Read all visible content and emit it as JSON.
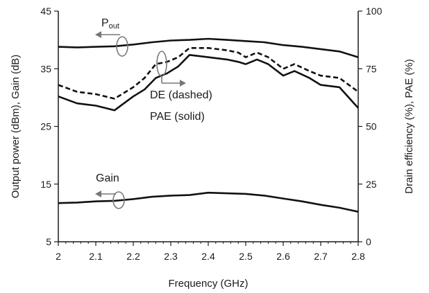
{
  "chart_data": {
    "type": "line",
    "title": "",
    "xlabel": "Frequency (GHz)",
    "ylabel_left": "Output power (dBm), Gain (dB)",
    "ylabel_right": "Drain efficiency (%), PAE (%)",
    "xlim": [
      2,
      2.8
    ],
    "ylim_left": [
      5,
      45
    ],
    "ylim_right": [
      0,
      100
    ],
    "x_ticks": [
      "2",
      "2.1",
      "2.2",
      "2.3",
      "2.4",
      "2.5",
      "2.6",
      "2.7",
      "2.8"
    ],
    "y_left_ticks": [
      "5",
      "15",
      "25",
      "35",
      "45"
    ],
    "y_right_ticks": [
      "0",
      "25",
      "50",
      "75",
      "100"
    ],
    "grid": false,
    "annotations": {
      "pout_main": "P",
      "pout_sub": "out",
      "de": "DE (dashed)",
      "pae": "PAE (solid)",
      "gain": "Gain"
    },
    "series": [
      {
        "key": "pout",
        "axis": "left",
        "style": "solid",
        "x": [
          2.0,
          2.05,
          2.1,
          2.15,
          2.2,
          2.25,
          2.3,
          2.35,
          2.4,
          2.45,
          2.5,
          2.55,
          2.6,
          2.65,
          2.7,
          2.75,
          2.8
        ],
        "y": [
          38.8,
          38.7,
          38.8,
          38.9,
          39.2,
          39.6,
          39.9,
          40.0,
          40.2,
          40.0,
          39.8,
          39.6,
          39.1,
          38.8,
          38.4,
          38.0,
          37.0
        ]
      },
      {
        "key": "gain",
        "axis": "left",
        "style": "solid",
        "x": [
          2.0,
          2.05,
          2.1,
          2.15,
          2.2,
          2.25,
          2.3,
          2.35,
          2.4,
          2.45,
          2.5,
          2.55,
          2.6,
          2.65,
          2.7,
          2.75,
          2.8
        ],
        "y": [
          11.7,
          11.8,
          12.0,
          12.1,
          12.4,
          12.8,
          13.0,
          13.1,
          13.5,
          13.4,
          13.3,
          13.0,
          12.5,
          12.0,
          11.4,
          10.9,
          10.2
        ]
      },
      {
        "key": "de",
        "axis": "right",
        "style": "dashed",
        "x": [
          2.0,
          2.05,
          2.1,
          2.15,
          2.2,
          2.23,
          2.26,
          2.29,
          2.32,
          2.35,
          2.4,
          2.45,
          2.48,
          2.5,
          2.53,
          2.56,
          2.6,
          2.63,
          2.67,
          2.7,
          2.75,
          2.8
        ],
        "y": [
          68,
          65,
          64,
          62,
          67,
          71,
          77,
          78,
          80,
          84,
          84,
          83,
          82,
          80,
          82,
          80,
          75,
          77,
          74,
          72,
          71,
          65
        ]
      },
      {
        "key": "pae",
        "axis": "right",
        "style": "solid",
        "x": [
          2.0,
          2.05,
          2.1,
          2.15,
          2.2,
          2.23,
          2.26,
          2.29,
          2.32,
          2.35,
          2.4,
          2.45,
          2.48,
          2.5,
          2.53,
          2.56,
          2.6,
          2.63,
          2.67,
          2.7,
          2.75,
          2.8
        ],
        "y": [
          63,
          60,
          59,
          57,
          63,
          66,
          71,
          73,
          76,
          81,
          80,
          79,
          78,
          77,
          79,
          77,
          72,
          74,
          71,
          68,
          67,
          58
        ]
      }
    ]
  }
}
